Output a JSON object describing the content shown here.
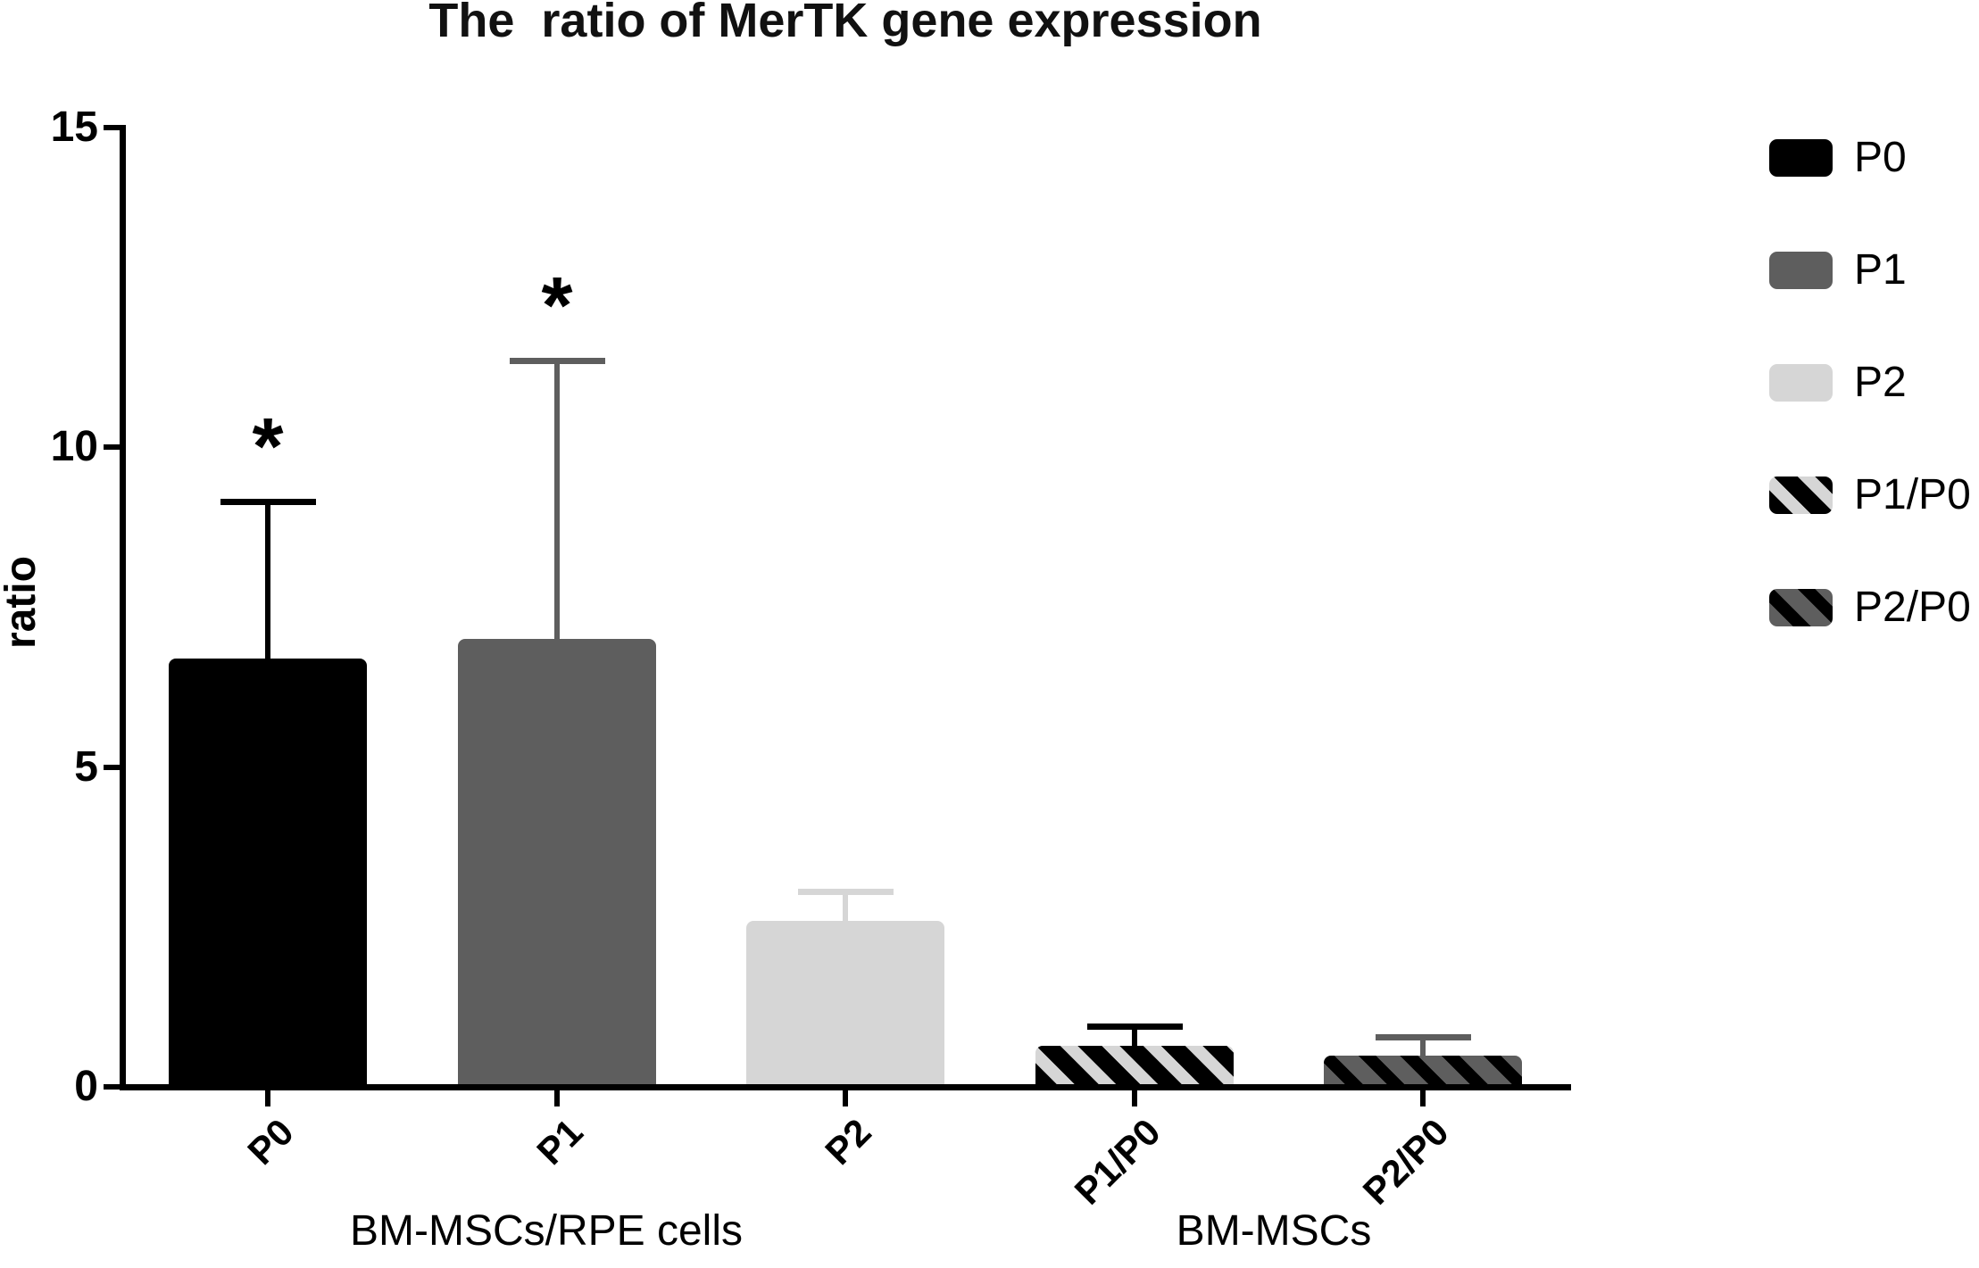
{
  "chart_data": {
    "type": "bar",
    "title": "The  ratio of MerTK gene expression",
    "ylabel": "ratio",
    "xlabel": "",
    "ylim": [
      0,
      15
    ],
    "yticks": [
      15,
      10,
      5,
      0
    ],
    "grid": false,
    "legend_position": "right",
    "categories": [
      "P0",
      "P1",
      "P2",
      "P1/P0",
      "P2/P0"
    ],
    "values": [
      6.7,
      7.0,
      2.6,
      0.64,
      0.49
    ],
    "errors": [
      2.5,
      4.4,
      0.5,
      0.35,
      0.34
    ],
    "error_type": "upper-whisker",
    "significance": [
      "*",
      "*",
      "",
      "",
      ""
    ],
    "group_labels": [
      "BM-MSCs/RPE cells",
      "BM-MSCs"
    ],
    "group_membership": [
      0,
      0,
      0,
      1,
      1
    ],
    "series_styles": [
      {
        "name": "P0",
        "fill": "#000000",
        "hatch": null
      },
      {
        "name": "P1",
        "fill": "#5e5e5e",
        "hatch": null
      },
      {
        "name": "P2",
        "fill": "#d6d6d6",
        "hatch": null
      },
      {
        "name": "P1/P0",
        "fill": "#000000",
        "hatch": "#d6d6d6"
      },
      {
        "name": "P2/P0",
        "fill": "#5e5e5e",
        "hatch": "#000000"
      }
    ]
  },
  "legend": {
    "items": [
      {
        "label": "P0"
      },
      {
        "label": "P1"
      },
      {
        "label": "P2"
      },
      {
        "label": "P1/P0"
      },
      {
        "label": "P2/P0"
      }
    ]
  },
  "colors": {
    "axis": "#000000",
    "text": "#000000",
    "background": "#ffffff",
    "bar_black": "#000000",
    "bar_darkgray": "#5e5e5e",
    "bar_lightgray": "#d6d6d6"
  }
}
